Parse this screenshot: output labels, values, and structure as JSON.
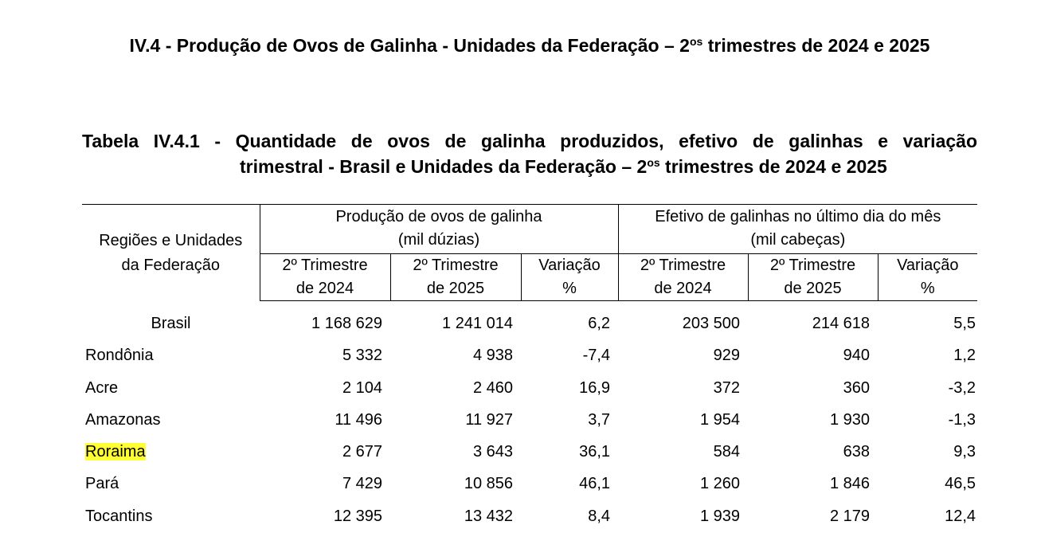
{
  "section": {
    "title_main": "IV.4 - Produção de Ovos de Galinha - Unidades da Federação – 2",
    "title_sup": "os",
    "title_rest": " trimestres de 2024 e 2025"
  },
  "table_caption": {
    "line1": "Tabela IV.4.1 - Quantidade de ovos de galinha produzidos, efetivo de galinhas e variação",
    "line2_main": "trimestral - Brasil e Unidades da Federação – 2",
    "line2_sup": "os",
    "line2_rest": " trimestres de 2024 e 2025"
  },
  "table": {
    "header": {
      "regions_line1": "Regiões e Unidades",
      "regions_line2": "da Federação",
      "group1_line1": "Produção de ovos de galinha",
      "group1_line2": "(mil dúzias)",
      "group2_line1": "Efetivo de galinhas no último dia do mês",
      "group2_line2": "(mil cabeças)",
      "col_q2_2024_line1": "2º Trimestre",
      "col_q2_2024_line2": "de 2024",
      "col_q2_2025_line1": "2º Trimestre",
      "col_q2_2025_line2": "de 2025",
      "col_var_line1": "Variação",
      "col_var_line2": "%"
    },
    "rows": [
      {
        "name": "Brasil",
        "eggs_2024": "1 168 629",
        "eggs_2025": "1 241 014",
        "eggs_var": "6,2",
        "hens_2024": "203 500",
        "hens_2025": "214 618",
        "hens_var": "5,5"
      },
      {
        "name": "Rondônia",
        "eggs_2024": "5 332",
        "eggs_2025": "4 938",
        "eggs_var": "-7,4",
        "hens_2024": "929",
        "hens_2025": "940",
        "hens_var": "1,2"
      },
      {
        "name": "Acre",
        "eggs_2024": "2 104",
        "eggs_2025": "2 460",
        "eggs_var": "16,9",
        "hens_2024": "372",
        "hens_2025": "360",
        "hens_var": "-3,2"
      },
      {
        "name": "Amazonas",
        "eggs_2024": "11 496",
        "eggs_2025": "11 927",
        "eggs_var": "3,7",
        "hens_2024": "1 954",
        "hens_2025": "1 930",
        "hens_var": "-1,3"
      },
      {
        "name": "Roraima",
        "eggs_2024": "2 677",
        "eggs_2025": "3 643",
        "eggs_var": "36,1",
        "hens_2024": "584",
        "hens_2025": "638",
        "hens_var": "9,3"
      },
      {
        "name": "Pará",
        "eggs_2024": "7 429",
        "eggs_2025": "10 856",
        "eggs_var": "46,1",
        "hens_2024": "1 260",
        "hens_2025": "1 846",
        "hens_var": "46,5"
      },
      {
        "name": "Tocantins",
        "eggs_2024": "12 395",
        "eggs_2025": "13 432",
        "eggs_var": "8,4",
        "hens_2024": "1 939",
        "hens_2025": "2 179",
        "hens_var": "12,4"
      }
    ]
  },
  "highlight_color": "#ffff33"
}
